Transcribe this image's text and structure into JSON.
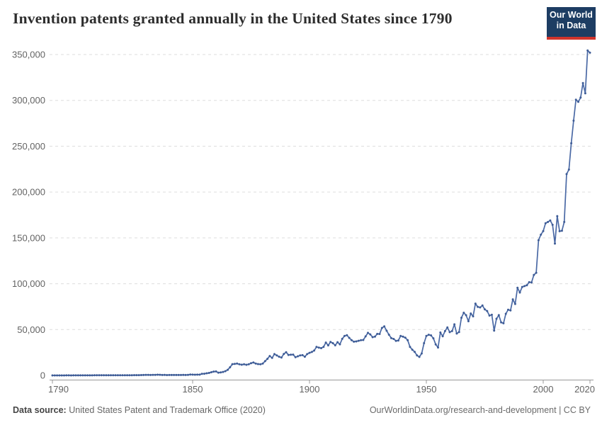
{
  "header": {
    "title": "Invention patents granted annually in the United States since 1790",
    "logo": {
      "line1": "Our World",
      "line2": "in Data",
      "bg_color": "#1d3d63",
      "bar_color": "#d0342c"
    }
  },
  "chart_data": {
    "type": "line",
    "title": "Invention patents granted annually in the United States since 1790",
    "xlabel": "",
    "ylabel": "",
    "legend_position": "none",
    "grid": "horizontal-dashed",
    "line_color": "#4a69a5",
    "marker_color": "#3e5c96",
    "axis_color": "#999999",
    "grid_color": "#dddddd",
    "tick_text_color": "#636363",
    "x_start": 1790,
    "x_end": 2020,
    "ylim": [
      0,
      355000
    ],
    "x_ticks": [
      {
        "value": 1790,
        "label": "1790"
      },
      {
        "value": 1850,
        "label": "1850"
      },
      {
        "value": 1900,
        "label": "1900"
      },
      {
        "value": 1950,
        "label": "1950"
      },
      {
        "value": 2000,
        "label": "2000"
      },
      {
        "value": 2020,
        "label": "2020"
      }
    ],
    "y_ticks": [
      {
        "value": 0,
        "label": "0"
      },
      {
        "value": 50000,
        "label": "50,000"
      },
      {
        "value": 100000,
        "label": "100,000"
      },
      {
        "value": 150000,
        "label": "150,000"
      },
      {
        "value": 200000,
        "label": "200,000"
      },
      {
        "value": 250000,
        "label": "250,000"
      },
      {
        "value": 300000,
        "label": "300,000"
      },
      {
        "value": 350000,
        "label": "350,000"
      }
    ],
    "series": [
      {
        "name": "Invention patents granted",
        "start_year": 1790,
        "values": [
          3,
          33,
          11,
          20,
          22,
          12,
          44,
          51,
          28,
          44,
          41,
          44,
          65,
          97,
          84,
          57,
          63,
          99,
          158,
          203,
          223,
          215,
          238,
          181,
          210,
          173,
          206,
          174,
          222,
          156,
          155,
          168,
          200,
          173,
          228,
          304,
          323,
          331,
          368,
          447,
          544,
          573,
          474,
          586,
          630,
          752,
          702,
          426,
          514,
          404,
          458,
          490,
          488,
          493,
          478,
          473,
          566,
          495,
          583,
          984,
          883,
          752,
          885,
          844,
          1755,
          1881,
          2302,
          2674,
          3455,
          4160,
          4357,
          3020,
          3214,
          3773,
          4630,
          6088,
          8863,
          12277,
          12526,
          12931,
          12137,
          11659,
          12180,
          11616,
          12230,
          13291,
          14169,
          12920,
          12345,
          12125,
          12903,
          15500,
          18091,
          21185,
          19118,
          23285,
          21767,
          20403,
          19551,
          23324,
          25313,
          22312,
          22647,
          22750,
          19855,
          20856,
          21822,
          22067,
          20377,
          23278,
          24644,
          25546,
          27119,
          31029,
          30258,
          29775,
          31170,
          35859,
          32735,
          36561,
          35141,
          32856,
          36198,
          33917,
          39892,
          43118,
          43892,
          40935,
          38452,
          36797,
          37060,
          37798,
          38369,
          38616,
          42574,
          46432,
          44733,
          41717,
          42357,
          45267,
          45226,
          51756,
          53458,
          48774,
          44420,
          40618,
          39782,
          37683,
          38061,
          43073,
          42238,
          41109,
          38449,
          31054,
          28053,
          25695,
          21803,
          20139,
          23963,
          35131,
          43040,
          44326,
          43616,
          40468,
          33810,
          30432,
          46817,
          42744,
          48330,
          52408,
          47170,
          48368,
          55691,
          45679,
          47376,
          62857,
          68406,
          65652,
          59104,
          67559,
          64429,
          78317,
          74810,
          74143,
          76278,
          71994,
          70226,
          65269,
          66102,
          48854,
          61819,
          65771,
          57888,
          56860,
          67200,
          71661,
          70860,
          82952,
          77924,
          95537,
          90365,
          96511,
          97444,
          98342,
          101676,
          101419,
          109645,
          111984,
          147520,
          153485,
          157495,
          166035,
          167331,
          169023,
          164290,
          143806,
          173772,
          157282,
          157772,
          167349,
          219614,
          224505,
          253155,
          277835,
          300678,
          298407,
          303049,
          318829,
          307759,
          354430,
          351993
        ]
      }
    ]
  },
  "footer": {
    "source_label": "Data source:",
    "source_text": "United States Patent and Trademark Office (2020)",
    "link_text": "OurWorldinData.org/research-and-development | CC BY"
  }
}
